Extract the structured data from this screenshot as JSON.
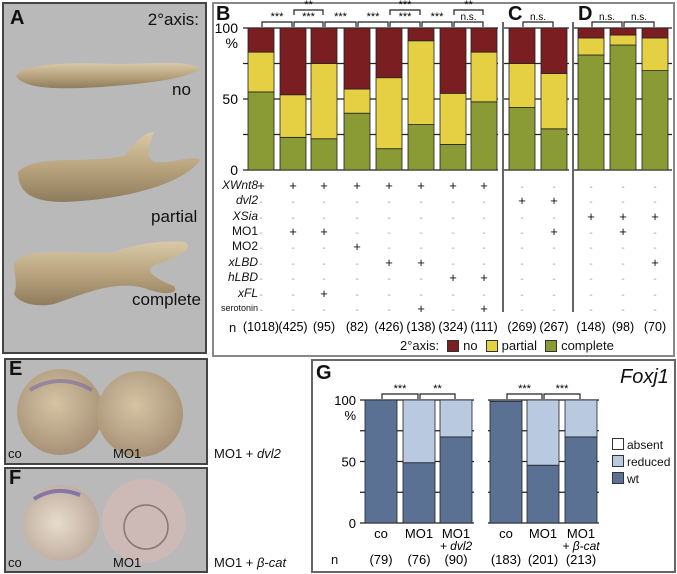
{
  "panel_a": {
    "label": "A",
    "axis_label": "2°axis:",
    "phenotypes": [
      "no",
      "partial",
      "complete"
    ]
  },
  "panel_b": {
    "label": "B"
  },
  "panel_c": {
    "label": "C"
  },
  "panel_d": {
    "label": "D"
  },
  "panel_e": {
    "label": "E",
    "captions": [
      "co",
      "MO1",
      "MO1 + ",
      "dvl2"
    ]
  },
  "panel_f": {
    "label": "F",
    "captions": [
      "co",
      "MO1",
      "MO1 + ",
      "β-cat"
    ]
  },
  "panel_g": {
    "label": "G",
    "title": "Foxj1",
    "n_label": "n"
  },
  "conditions": {
    "rows": [
      {
        "label": "XWnt8",
        "values": [
          "+",
          "+",
          "+",
          "+",
          "+",
          "+",
          "+",
          "+",
          "-",
          "-",
          "-",
          "-",
          "-"
        ]
      },
      {
        "label": "dvl2",
        "values": [
          "-",
          "-",
          "-",
          "-",
          "-",
          "-",
          "-",
          "-",
          "+",
          "+",
          "-",
          "-",
          "-"
        ]
      },
      {
        "label": "XSia",
        "values": [
          "-",
          "-",
          "-",
          "-",
          "-",
          "-",
          "-",
          "-",
          "-",
          "-",
          "+",
          "+",
          "+"
        ]
      },
      {
        "label": "MO1",
        "values": [
          "-",
          "+",
          "+",
          "-",
          "-",
          "-",
          "-",
          "-",
          "-",
          "+",
          "-",
          "+",
          "-"
        ]
      },
      {
        "label": "MO2",
        "values": [
          "-",
          "-",
          "-",
          "+",
          "-",
          "-",
          "-",
          "-",
          "-",
          "-",
          "-",
          "-",
          "-"
        ]
      },
      {
        "label": "xLBD",
        "values": [
          "-",
          "-",
          "-",
          "-",
          "+",
          "+",
          "-",
          "-",
          "-",
          "-",
          "-",
          "-",
          "+"
        ]
      },
      {
        "label": "hLBD",
        "values": [
          "-",
          "-",
          "-",
          "-",
          "-",
          "-",
          "+",
          "+",
          "-",
          "-",
          "-",
          "-",
          "-"
        ]
      },
      {
        "label": "xFL",
        "values": [
          "-",
          "-",
          "+",
          "-",
          "-",
          "-",
          "-",
          "-",
          "-",
          "-",
          "-",
          "-",
          "-"
        ]
      },
      {
        "label": "serotonin",
        "values": [
          "-",
          "-",
          "-",
          "-",
          "-",
          "+",
          "-",
          "+",
          "-",
          "-",
          "-",
          "-",
          "-"
        ]
      }
    ],
    "n_label": "n",
    "n": [
      "(1018)",
      "(425)",
      "(95)",
      "(82)",
      "(426)",
      "(138)",
      "(324)",
      "(111)",
      "(269)",
      "(267)",
      "(148)",
      "(98)",
      "(70)"
    ]
  },
  "legend_bcd": {
    "title": "2°axis:",
    "items": [
      {
        "label": "no",
        "color": "#7a1e22"
      },
      {
        "label": "partial",
        "color": "#e5cf42"
      },
      {
        "label": "complete",
        "color": "#8a9a35"
      }
    ]
  },
  "legend_g": {
    "items": [
      {
        "label": "absent",
        "color": "#ffffff"
      },
      {
        "label": "reduced",
        "color": "#b9c9df"
      },
      {
        "label": "wt",
        "color": "#5a7194"
      }
    ]
  },
  "chart_data": [
    {
      "panel": "B",
      "type": "bar",
      "stacked": true,
      "ylim": [
        0,
        100
      ],
      "yticks": [
        "0",
        "50",
        "100"
      ],
      "ylabel": "%",
      "series": [
        {
          "name": "complete",
          "color": "#8a9a35",
          "values": [
            55,
            23,
            22,
            40,
            15,
            32,
            18,
            48
          ]
        },
        {
          "name": "partial",
          "color": "#e5cf42",
          "values": [
            28,
            30,
            53,
            17,
            50,
            59,
            36,
            35
          ]
        },
        {
          "name": "no",
          "color": "#7a1e22",
          "values": [
            17,
            47,
            25,
            43,
            35,
            9,
            46,
            17
          ]
        }
      ],
      "significance": [
        {
          "bars": [
            0,
            1
          ],
          "label": "***",
          "level": 1
        },
        {
          "bars": [
            1,
            2
          ],
          "label": "***",
          "level": 1
        },
        {
          "bars": [
            2,
            3
          ],
          "label": "***",
          "level": 1
        },
        {
          "bars": [
            3,
            4
          ],
          "label": "***",
          "level": 1
        },
        {
          "bars": [
            4,
            5
          ],
          "label": "***",
          "level": 1
        },
        {
          "bars": [
            5,
            6
          ],
          "label": "***",
          "level": 1
        },
        {
          "bars": [
            6,
            7
          ],
          "label": "n.s.",
          "level": 1
        },
        {
          "bars": [
            1,
            2
          ],
          "label": "**",
          "level": 2
        },
        {
          "bars": [
            4,
            5
          ],
          "label": "***",
          "level": 2
        },
        {
          "bars": [
            6,
            7
          ],
          "label": "**",
          "level": 2
        }
      ]
    },
    {
      "panel": "C",
      "type": "bar",
      "stacked": true,
      "ylim": [
        0,
        100
      ],
      "series": [
        {
          "name": "complete",
          "color": "#8a9a35",
          "values": [
            44,
            29
          ]
        },
        {
          "name": "partial",
          "color": "#e5cf42",
          "values": [
            31,
            39
          ]
        },
        {
          "name": "no",
          "color": "#7a1e22",
          "values": [
            25,
            32
          ]
        }
      ],
      "significance": [
        {
          "bars": [
            0,
            1
          ],
          "label": "n.s.",
          "level": 1
        }
      ]
    },
    {
      "panel": "D",
      "type": "bar",
      "stacked": true,
      "ylim": [
        0,
        100
      ],
      "series": [
        {
          "name": "complete",
          "color": "#8a9a35",
          "values": [
            81,
            88,
            70
          ]
        },
        {
          "name": "partial",
          "color": "#e5cf42",
          "values": [
            12,
            7,
            23
          ]
        },
        {
          "name": "no",
          "color": "#7a1e22",
          "values": [
            7,
            5,
            7
          ]
        }
      ],
      "significance": [
        {
          "bars": [
            0,
            1
          ],
          "label": "n.s.",
          "level": 1
        },
        {
          "bars": [
            1,
            2
          ],
          "label": "n.s.",
          "level": 1
        }
      ]
    },
    {
      "panel": "G1",
      "type": "bar",
      "stacked": true,
      "ylim": [
        0,
        100
      ],
      "yticks": [
        "0",
        "50",
        "100"
      ],
      "ylabel": "%",
      "categories": [
        {
          "line1": "co"
        },
        {
          "line1": "MO1"
        },
        {
          "line1": "MO1",
          "line2": "+ dvl2"
        }
      ],
      "n": [
        "(79)",
        "(76)",
        "(90)"
      ],
      "series": [
        {
          "name": "wt",
          "color": "#5a7194",
          "values": [
            100,
            49,
            70
          ]
        },
        {
          "name": "reduced",
          "color": "#b9c9df",
          "values": [
            0,
            51,
            30
          ]
        },
        {
          "name": "absent",
          "color": "#ffffff",
          "values": [
            0,
            0,
            0
          ]
        }
      ],
      "significance": [
        {
          "bars": [
            0,
            1
          ],
          "label": "***",
          "level": 1
        },
        {
          "bars": [
            1,
            2
          ],
          "label": "**",
          "level": 1
        }
      ]
    },
    {
      "panel": "G2",
      "type": "bar",
      "stacked": true,
      "ylim": [
        0,
        100
      ],
      "categories": [
        {
          "line1": "co"
        },
        {
          "line1": "MO1"
        },
        {
          "line1": "MO1",
          "line2": "+ β-cat"
        }
      ],
      "n": [
        "(183)",
        "(201)",
        "(213)"
      ],
      "series": [
        {
          "name": "wt",
          "color": "#5a7194",
          "values": [
            99,
            47,
            70
          ]
        },
        {
          "name": "reduced",
          "color": "#b9c9df",
          "values": [
            1,
            53,
            30
          ]
        },
        {
          "name": "absent",
          "color": "#ffffff",
          "values": [
            0,
            0,
            0
          ]
        }
      ],
      "significance": [
        {
          "bars": [
            0,
            1
          ],
          "label": "***",
          "level": 1
        },
        {
          "bars": [
            1,
            2
          ],
          "label": "***",
          "level": 1
        }
      ]
    }
  ]
}
